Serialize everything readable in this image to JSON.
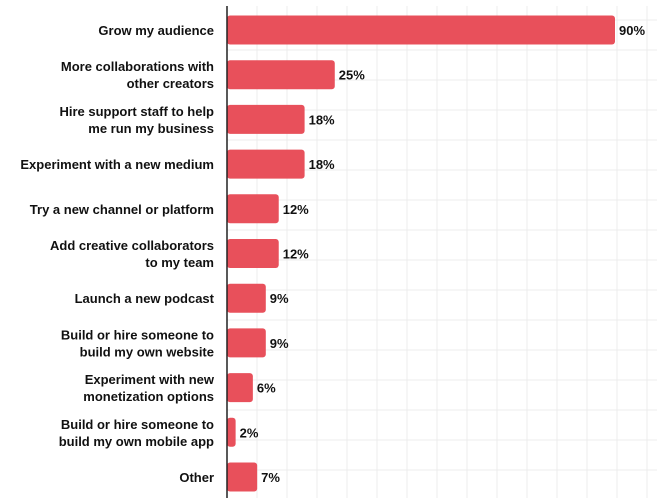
{
  "chart_data": {
    "type": "bar",
    "orientation": "horizontal",
    "categories": [
      "Grow my audience",
      "More collaborations with\nother creators",
      "Hire support staff to help\nme run my business",
      "Experiment with a new medium",
      "Try a new channel or platform",
      "Add creative collaborators\nto my team",
      "Launch a new podcast",
      "Build or hire someone to\nbuild my own website",
      "Experiment with new\nmonetization options",
      "Build or hire someone to\nbuild my own mobile app",
      "Other"
    ],
    "values": [
      90,
      25,
      18,
      18,
      12,
      12,
      9,
      9,
      6,
      2,
      7
    ],
    "value_labels": [
      "90%",
      "25%",
      "18%",
      "18%",
      "12%",
      "12%",
      "9%",
      "9%",
      "6%",
      "2%",
      "7%"
    ],
    "xlim": [
      0,
      100
    ],
    "grid": true,
    "bar_color": "#e8505b",
    "grid_color": "#ececec",
    "axis_color": "#222222"
  }
}
